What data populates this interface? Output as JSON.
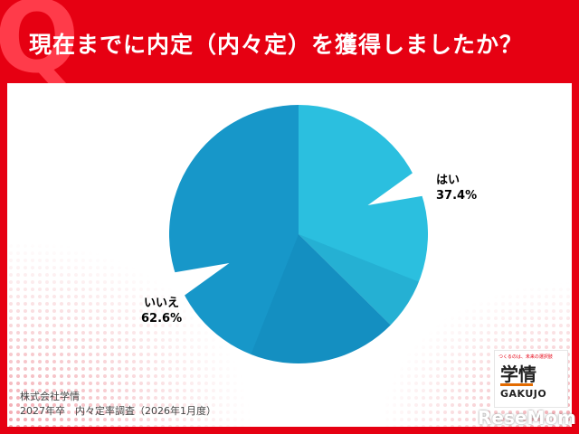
{
  "header": {
    "q_mark": "Q",
    "title": "現在までに内定（内々定）を獲得しましたか？"
  },
  "chart_data": {
    "type": "pie",
    "title": "現在までに内定（内々定）を獲得しましたか？",
    "slices": [
      {
        "label": "はい",
        "value": 37.4,
        "value_label": "37.4%",
        "color": "#2bbfdf"
      },
      {
        "label": "いいえ",
        "value": 62.6,
        "value_label": "62.6%",
        "color": "#1797c9"
      }
    ],
    "start": "12 o'clock",
    "direction": "clockwise"
  },
  "source": {
    "company": "株式会社学情",
    "survey": "2027年卒　内々定率調査（2026年1月度）"
  },
  "logo": {
    "tagline": "つくるのは、未来の選択肢",
    "name_ja": "学情",
    "name_en": "GAKUJO"
  },
  "watermark": "ReseMom",
  "colors": {
    "brand_red": "#e60012",
    "slice_yes": "#2bbfdf",
    "slice_no": "#1797c9"
  }
}
